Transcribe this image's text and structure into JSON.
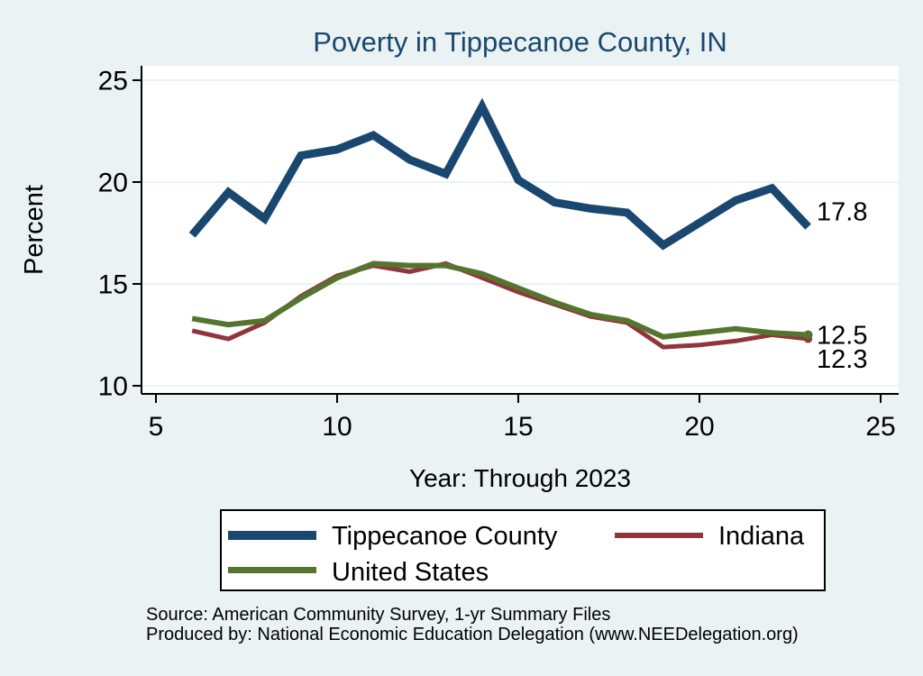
{
  "chart_data": {
    "type": "line",
    "title": "Poverty in Tippecanoe County, IN",
    "xlabel": "Year: Through 2023",
    "ylabel": "Percent",
    "x": [
      6,
      7,
      8,
      9,
      10,
      11,
      12,
      13,
      14,
      15,
      16,
      17,
      18,
      19,
      20,
      21,
      22,
      23
    ],
    "x_ticks": [
      5,
      10,
      15,
      20,
      25
    ],
    "y_ticks": [
      25,
      20,
      15,
      10
    ],
    "xlim": [
      5,
      25.5
    ],
    "ylim": [
      9.5,
      25.7
    ],
    "grid": true,
    "legend_position": "bottom",
    "series": [
      {
        "name": "Tippecanoe County",
        "color": "#1a476f",
        "line_width": 9,
        "end_label": "17.8",
        "end_label_dy": -7,
        "end_dot_r": 0,
        "values": [
          17.4,
          19.5,
          18.2,
          21.3,
          21.6,
          22.3,
          21.1,
          20.4,
          23.7,
          20.1,
          19.0,
          18.7,
          18.5,
          16.9,
          18.0,
          19.1,
          19.7,
          17.8
        ]
      },
      {
        "name": "Indiana",
        "color": "#90353b",
        "line_width": 5,
        "end_label": "12.3",
        "end_label_dy": 32,
        "end_dot_r": 4.5,
        "values": [
          12.7,
          12.3,
          13.1,
          14.4,
          15.4,
          15.9,
          15.6,
          16.0,
          15.3,
          14.6,
          14.0,
          13.4,
          13.1,
          11.9,
          12.0,
          12.2,
          12.5,
          12.3
        ]
      },
      {
        "name": "United States",
        "color": "#55752f",
        "line_width": 6,
        "end_label": "12.5",
        "end_label_dy": 10,
        "end_dot_r": 5,
        "values": [
          13.3,
          13.0,
          13.2,
          14.3,
          15.3,
          16.0,
          15.9,
          15.9,
          15.5,
          14.8,
          14.1,
          13.5,
          13.2,
          12.4,
          12.6,
          12.8,
          12.6,
          12.5
        ]
      }
    ]
  },
  "notes": {
    "source": "Source: American Community Survey, 1-yr Summary Files",
    "produced_by": "Produced by: National Economic Education Delegation (www.NEEDelegation.org)"
  },
  "colors": {
    "background": "#eaf2f3",
    "plot_background": "#ffffff",
    "gridline": "#e2edf0",
    "axis": "#000000",
    "title": "#1a476f",
    "text": "#000000",
    "legend_background": "#ffffff",
    "legend_border": "#000000"
  }
}
